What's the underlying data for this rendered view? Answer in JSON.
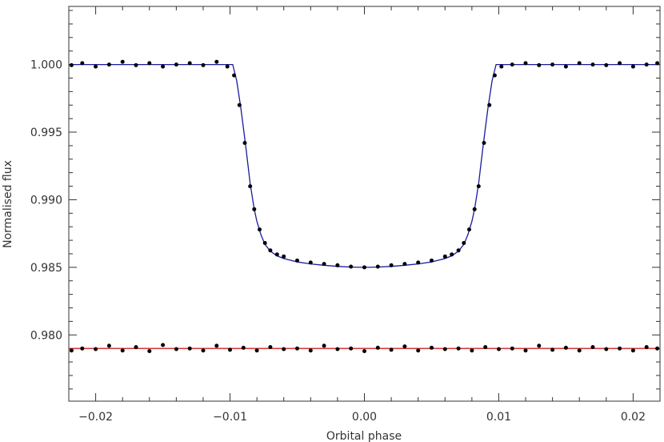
{
  "chart_data": {
    "type": "scatter",
    "title": "",
    "xlabel": "Orbital phase",
    "ylabel": "Normalised flux",
    "xlim": [
      -0.022,
      0.022
    ],
    "ylim": [
      0.9751,
      1.0043
    ],
    "grid": false,
    "legend": "none",
    "x_ticks": {
      "major": [
        -0.02,
        -0.01,
        0.0,
        0.01,
        0.02
      ],
      "major_labels": [
        "−0.02",
        "−0.01",
        "0.00",
        "0.01",
        "0.02"
      ],
      "minor_step": 0.002
    },
    "y_ticks": {
      "major": [
        0.98,
        0.985,
        0.99,
        0.995,
        1.0
      ],
      "major_labels": [
        "0.980",
        "0.985",
        "0.990",
        "0.995",
        "1.000"
      ],
      "minor_step": 0.001
    },
    "series": [
      {
        "kind": "points",
        "color": "#000000",
        "x": [
          -0.0218,
          -0.021,
          -0.02,
          -0.019,
          -0.018,
          -0.017,
          -0.016,
          -0.015,
          -0.014,
          -0.013,
          -0.012,
          -0.011,
          -0.0102,
          -0.0097,
          -0.0093,
          -0.0089,
          -0.0085,
          -0.0082,
          -0.0078,
          -0.0074,
          -0.007,
          -0.0065,
          -0.006,
          -0.005,
          -0.004,
          -0.003,
          -0.002,
          -0.001,
          0.0,
          0.001,
          0.002,
          0.003,
          0.004,
          0.005,
          0.006,
          0.0065,
          0.007,
          0.0074,
          0.0078,
          0.0082,
          0.0085,
          0.0089,
          0.0093,
          0.0097,
          0.0102,
          0.011,
          0.012,
          0.013,
          0.014,
          0.015,
          0.016,
          0.017,
          0.018,
          0.019,
          0.02,
          0.021,
          0.0218
        ],
        "y": [
          0.99995,
          1.0001,
          0.99985,
          1.0,
          1.0002,
          0.99995,
          1.0001,
          0.99985,
          1.0,
          1.0001,
          0.99995,
          1.0002,
          0.99985,
          0.9992,
          0.997,
          0.9942,
          0.991,
          0.9893,
          0.9878,
          0.9868,
          0.98625,
          0.98595,
          0.9858,
          0.9855,
          0.98535,
          0.98525,
          0.98515,
          0.98505,
          0.985,
          0.98505,
          0.98515,
          0.98525,
          0.98535,
          0.9855,
          0.9858,
          0.98595,
          0.98625,
          0.9868,
          0.9878,
          0.9893,
          0.991,
          0.9942,
          0.997,
          0.9992,
          0.99985,
          1.0,
          1.0001,
          0.99995,
          1.0,
          0.99985,
          1.0001,
          1.0,
          0.99995,
          1.0001,
          0.99985,
          1.0,
          1.0001
        ]
      },
      {
        "kind": "model",
        "color": "#1a1aa0",
        "x": [
          -0.022,
          -0.0098,
          -0.0095,
          -0.0092,
          -0.009,
          -0.0088,
          -0.0085,
          -0.0082,
          -0.008,
          -0.0077,
          -0.0074,
          -0.007,
          -0.0065,
          -0.006,
          -0.005,
          -0.004,
          -0.003,
          -0.002,
          -0.001,
          0.0,
          0.001,
          0.002,
          0.003,
          0.004,
          0.005,
          0.006,
          0.0065,
          0.007,
          0.0074,
          0.0077,
          0.008,
          0.0082,
          0.0085,
          0.0088,
          0.009,
          0.0092,
          0.0095,
          0.0098,
          0.022
        ],
        "y": [
          1.0,
          1.0,
          0.9988,
          0.9968,
          0.9953,
          0.9937,
          0.9912,
          0.9893,
          0.9884,
          0.9874,
          0.9867,
          0.9862,
          0.98585,
          0.98565,
          0.9854,
          0.98525,
          0.98515,
          0.98507,
          0.98502,
          0.985,
          0.98502,
          0.98507,
          0.98515,
          0.98525,
          0.9854,
          0.98565,
          0.98585,
          0.9862,
          0.9867,
          0.9874,
          0.9884,
          0.9893,
          0.9912,
          0.9937,
          0.9953,
          0.9968,
          0.9988,
          1.0,
          1.0
        ]
      },
      {
        "kind": "residual-points",
        "color": "#000000",
        "x": [
          -0.0218,
          -0.021,
          -0.02,
          -0.019,
          -0.018,
          -0.017,
          -0.016,
          -0.015,
          -0.014,
          -0.013,
          -0.012,
          -0.011,
          -0.01,
          -0.009,
          -0.008,
          -0.007,
          -0.006,
          -0.005,
          -0.004,
          -0.003,
          -0.002,
          -0.001,
          0.0,
          0.001,
          0.002,
          0.003,
          0.004,
          0.005,
          0.006,
          0.007,
          0.008,
          0.009,
          0.01,
          0.011,
          0.012,
          0.013,
          0.014,
          0.015,
          0.016,
          0.017,
          0.018,
          0.019,
          0.02,
          0.021,
          0.0218
        ],
        "y": [
          0.97885,
          0.979,
          0.97895,
          0.9792,
          0.97885,
          0.9791,
          0.9788,
          0.97925,
          0.97895,
          0.979,
          0.97885,
          0.9792,
          0.9789,
          0.97905,
          0.97885,
          0.9791,
          0.97895,
          0.979,
          0.97885,
          0.9792,
          0.97895,
          0.979,
          0.9788,
          0.97905,
          0.9789,
          0.97915,
          0.97885,
          0.97905,
          0.97895,
          0.979,
          0.97885,
          0.9791,
          0.97895,
          0.979,
          0.97885,
          0.9792,
          0.9789,
          0.97905,
          0.97885,
          0.9791,
          0.97895,
          0.979,
          0.97885,
          0.9791,
          0.979
        ]
      },
      {
        "kind": "residual-line",
        "color": "#cc2020",
        "x": [
          -0.022,
          0.022
        ],
        "y": [
          0.979,
          0.979
        ]
      }
    ]
  }
}
